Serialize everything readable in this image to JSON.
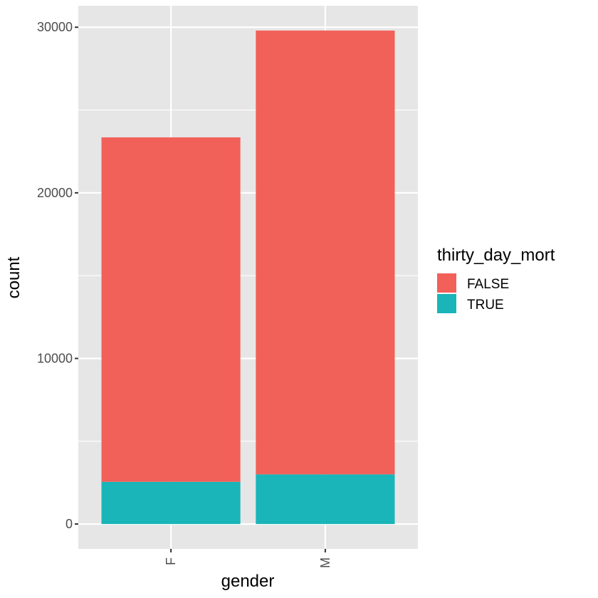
{
  "chart_data": {
    "type": "bar",
    "stacked": true,
    "categories": [
      "F",
      "M"
    ],
    "series": [
      {
        "name": "FALSE",
        "values": [
          20800,
          26800
        ],
        "color": "#F2605A"
      },
      {
        "name": "TRUE",
        "values": [
          2550,
          3000
        ],
        "color": "#19B5B8"
      }
    ],
    "xlabel": "gender",
    "ylabel": "count",
    "ylim": [
      -1500,
      31300
    ],
    "yticks": [
      0,
      10000,
      20000,
      30000
    ],
    "ytick_labels": [
      "0",
      "10000",
      "20000",
      "30000"
    ],
    "legend": {
      "title": "thirty_day_mort",
      "position": "right"
    },
    "grid": true,
    "panel_background": "#E6E6E6",
    "grid_color": "#FFFFFF"
  }
}
